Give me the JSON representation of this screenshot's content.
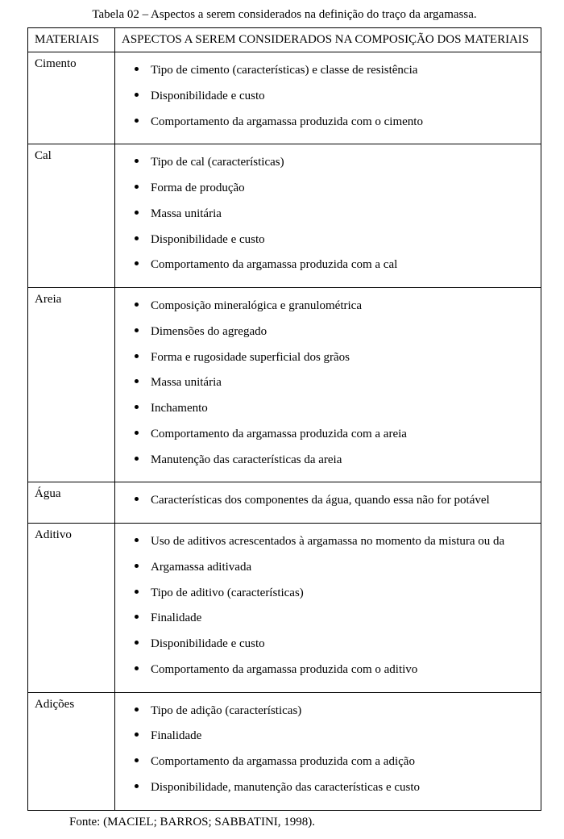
{
  "caption": "Tabela 02 – Aspectos a serem considerados na definição do traço da argamassa.",
  "header": {
    "materials": "MATERIAIS",
    "aspects": "ASPECTOS A SEREM CONSIDERADOS NA COMPOSIÇÃO DOS MATERIAIS"
  },
  "rows": [
    {
      "material": "Cimento",
      "items": [
        "Tipo de cimento (características) e classe de resistência",
        "Disponibilidade e custo",
        "Comportamento da argamassa produzida com o cimento"
      ]
    },
    {
      "material": "Cal",
      "items": [
        "Tipo de cal (características)",
        "Forma de produção",
        "Massa unitária",
        "Disponibilidade e custo",
        "Comportamento da argamassa produzida com a cal"
      ]
    },
    {
      "material": "Areia",
      "items": [
        "Composição mineralógica e granulométrica",
        "Dimensões do agregado",
        "Forma e rugosidade superficial dos grãos",
        "Massa unitária",
        "Inchamento",
        "Comportamento da argamassa produzida com a areia",
        "Manutenção das características da areia"
      ]
    },
    {
      "material": "Água",
      "items": [
        "Características dos componentes da água, quando essa não for potável"
      ]
    },
    {
      "material": "Aditivo",
      "items": [
        "Uso de aditivos acrescentados à argamassa no momento da mistura ou da",
        "Argamassa aditivada",
        "Tipo de aditivo (características)",
        "Finalidade",
        "Disponibilidade e custo",
        "Comportamento da argamassa produzida com o aditivo"
      ]
    },
    {
      "material": "Adições",
      "items": [
        "Tipo de adição (características)",
        "Finalidade",
        "Comportamento da argamassa produzida com a adição",
        "Disponibilidade, manutenção das características e custo"
      ]
    }
  ],
  "source": "Fonte: (MACIEL; BARROS; SABBATINI, 1998)."
}
